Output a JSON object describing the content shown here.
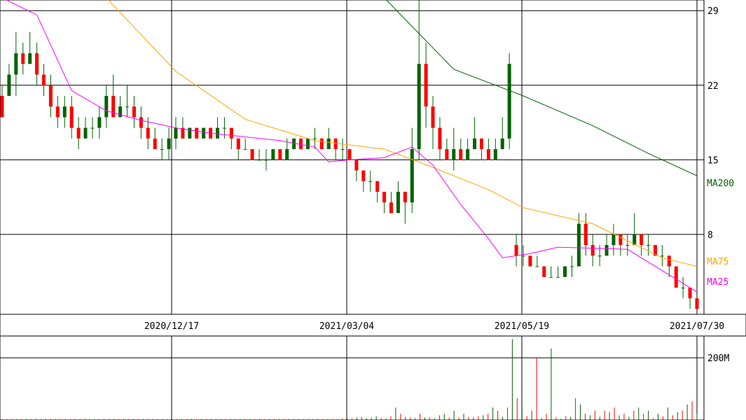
{
  "chart_data": [
    {
      "type": "candlestick",
      "x_tick_labels": [
        "2020/12/17",
        "2021/03/04",
        "2021/05/19",
        "2021/07/30"
      ],
      "y_tick_labels": [
        "29",
        "22",
        "15",
        "8"
      ],
      "ylim": [
        0.5,
        30
      ],
      "grid": true,
      "moving_averages": [
        {
          "name": "MA200",
          "color": "#006400",
          "values": [
            [
              0.55,
              30.2
            ],
            [
              0.65,
              23.5
            ],
            [
              0.75,
              21.0
            ],
            [
              0.85,
              18.2
            ],
            [
              0.93,
              15.6
            ],
            [
              1.0,
              13.5
            ]
          ]
        },
        {
          "name": "MA75",
          "color": "#ffa500",
          "values": [
            [
              0.15,
              30.2
            ],
            [
              0.25,
              23.3
            ],
            [
              0.35,
              18.8
            ],
            [
              0.45,
              16.8
            ],
            [
              0.55,
              16.0
            ],
            [
              0.6,
              14.8
            ],
            [
              0.7,
              12.2
            ],
            [
              0.75,
              10.5
            ],
            [
              0.85,
              9.0
            ],
            [
              0.95,
              5.8
            ],
            [
              1.0,
              5.0
            ]
          ]
        },
        {
          "name": "MA25",
          "color": "#ff00ff",
          "values": [
            [
              0.0,
              30.2
            ],
            [
              0.05,
              28.6
            ],
            [
              0.1,
              21.5
            ],
            [
              0.15,
              19.6
            ],
            [
              0.2,
              18.7
            ],
            [
              0.25,
              18.0
            ],
            [
              0.3,
              17.5
            ],
            [
              0.4,
              16.8
            ],
            [
              0.45,
              16.2
            ],
            [
              0.47,
              14.8
            ],
            [
              0.5,
              15.0
            ],
            [
              0.55,
              15.2
            ],
            [
              0.59,
              16.2
            ],
            [
              0.62,
              14.5
            ],
            [
              0.66,
              10.8
            ],
            [
              0.7,
              7.6
            ],
            [
              0.72,
              5.8
            ],
            [
              0.76,
              6.2
            ],
            [
              0.8,
              6.8
            ],
            [
              0.85,
              6.7
            ],
            [
              0.9,
              6.6
            ],
            [
              0.95,
              4.6
            ],
            [
              1.0,
              2.6
            ]
          ]
        }
      ],
      "candles": [
        {
          "x": 0.0,
          "o": 21,
          "c": 19,
          "h": 22,
          "l": 19
        },
        {
          "x": 0.01,
          "o": 21,
          "c": 23,
          "h": 24,
          "l": 21
        },
        {
          "x": 0.02,
          "o": 23,
          "c": 25,
          "h": 27,
          "l": 21
        },
        {
          "x": 0.03,
          "o": 25,
          "c": 24,
          "h": 26,
          "l": 23
        },
        {
          "x": 0.04,
          "o": 24,
          "c": 25,
          "h": 27,
          "l": 24
        },
        {
          "x": 0.05,
          "o": 25,
          "c": 23,
          "h": 26,
          "l": 22
        },
        {
          "x": 0.06,
          "o": 23,
          "c": 22,
          "h": 24,
          "l": 21
        },
        {
          "x": 0.07,
          "o": 22,
          "c": 20,
          "h": 23,
          "l": 19
        },
        {
          "x": 0.08,
          "o": 20,
          "c": 19,
          "h": 21,
          "l": 18
        },
        {
          "x": 0.09,
          "o": 19,
          "c": 20,
          "h": 21,
          "l": 18
        },
        {
          "x": 0.1,
          "o": 20,
          "c": 18,
          "h": 21,
          "l": 17
        },
        {
          "x": 0.11,
          "o": 18,
          "c": 17,
          "h": 19,
          "l": 16
        },
        {
          "x": 0.12,
          "o": 17,
          "c": 18,
          "h": 19,
          "l": 17
        },
        {
          "x": 0.13,
          "o": 18,
          "c": 18,
          "h": 19,
          "l": 17
        },
        {
          "x": 0.14,
          "o": 18,
          "c": 19,
          "h": 20,
          "l": 17
        },
        {
          "x": 0.15,
          "o": 19,
          "c": 21,
          "h": 22,
          "l": 18
        },
        {
          "x": 0.16,
          "o": 21,
          "c": 19,
          "h": 23,
          "l": 19
        },
        {
          "x": 0.17,
          "o": 19,
          "c": 20,
          "h": 21,
          "l": 19
        },
        {
          "x": 0.18,
          "o": 20,
          "c": 20,
          "h": 22,
          "l": 19
        },
        {
          "x": 0.19,
          "o": 20,
          "c": 19,
          "h": 21,
          "l": 18
        },
        {
          "x": 0.2,
          "o": 19,
          "c": 18,
          "h": 20,
          "l": 17
        },
        {
          "x": 0.21,
          "o": 18,
          "c": 17,
          "h": 19,
          "l": 16
        },
        {
          "x": 0.22,
          "o": 17,
          "c": 16,
          "h": 18,
          "l": 16
        },
        {
          "x": 0.23,
          "o": 16,
          "c": 16,
          "h": 17,
          "l": 15
        },
        {
          "x": 0.24,
          "o": 16,
          "c": 17,
          "h": 18,
          "l": 15
        },
        {
          "x": 0.25,
          "o": 17,
          "c": 18,
          "h": 19,
          "l": 16
        },
        {
          "x": 0.26,
          "o": 18,
          "c": 17,
          "h": 19,
          "l": 17
        },
        {
          "x": 0.27,
          "o": 17,
          "c": 18,
          "h": 18,
          "l": 17
        },
        {
          "x": 0.28,
          "o": 18,
          "c": 17,
          "h": 18,
          "l": 17
        },
        {
          "x": 0.29,
          "o": 17,
          "c": 18,
          "h": 18,
          "l": 17
        },
        {
          "x": 0.3,
          "o": 18,
          "c": 17,
          "h": 18,
          "l": 17
        },
        {
          "x": 0.31,
          "o": 17,
          "c": 18,
          "h": 19,
          "l": 17
        },
        {
          "x": 0.32,
          "o": 18,
          "c": 18,
          "h": 19,
          "l": 17
        },
        {
          "x": 0.33,
          "o": 18,
          "c": 17,
          "h": 18,
          "l": 16
        },
        {
          "x": 0.34,
          "o": 17,
          "c": 16,
          "h": 17,
          "l": 15
        },
        {
          "x": 0.35,
          "o": 16,
          "c": 16,
          "h": 17,
          "l": 16
        },
        {
          "x": 0.36,
          "o": 16,
          "c": 15,
          "h": 16,
          "l": 15
        },
        {
          "x": 0.37,
          "o": 15,
          "c": 15,
          "h": 16,
          "l": 15
        },
        {
          "x": 0.38,
          "o": 15,
          "c": 15,
          "h": 16,
          "l": 14
        },
        {
          "x": 0.39,
          "o": 15,
          "c": 16,
          "h": 16,
          "l": 15
        },
        {
          "x": 0.4,
          "o": 16,
          "c": 15,
          "h": 16,
          "l": 15
        },
        {
          "x": 0.41,
          "o": 15,
          "c": 16,
          "h": 17,
          "l": 15
        },
        {
          "x": 0.42,
          "o": 16,
          "c": 17,
          "h": 17,
          "l": 16
        },
        {
          "x": 0.43,
          "o": 17,
          "c": 16,
          "h": 17,
          "l": 16
        },
        {
          "x": 0.44,
          "o": 16,
          "c": 17,
          "h": 17,
          "l": 16
        },
        {
          "x": 0.45,
          "o": 17,
          "c": 17,
          "h": 18,
          "l": 16
        },
        {
          "x": 0.46,
          "o": 17,
          "c": 16,
          "h": 17,
          "l": 16
        },
        {
          "x": 0.47,
          "o": 16,
          "c": 17,
          "h": 18,
          "l": 16
        },
        {
          "x": 0.48,
          "o": 17,
          "c": 16,
          "h": 17,
          "l": 15
        },
        {
          "x": 0.49,
          "o": 16,
          "c": 16,
          "h": 17,
          "l": 15
        },
        {
          "x": 0.5,
          "o": 16,
          "c": 15,
          "h": 16,
          "l": 15
        },
        {
          "x": 0.51,
          "o": 15,
          "c": 14,
          "h": 15,
          "l": 13
        },
        {
          "x": 0.52,
          "o": 14,
          "c": 13,
          "h": 14,
          "l": 12
        },
        {
          "x": 0.53,
          "o": 13,
          "c": 13,
          "h": 14,
          "l": 12
        },
        {
          "x": 0.54,
          "o": 13,
          "c": 12,
          "h": 13,
          "l": 11
        },
        {
          "x": 0.55,
          "o": 12,
          "c": 11,
          "h": 12,
          "l": 10
        },
        {
          "x": 0.56,
          "o": 11,
          "c": 10,
          "h": 12,
          "l": 10
        },
        {
          "x": 0.57,
          "o": 10,
          "c": 12,
          "h": 13,
          "l": 10
        },
        {
          "x": 0.58,
          "o": 12,
          "c": 11,
          "h": 12,
          "l": 9
        },
        {
          "x": 0.59,
          "o": 11,
          "c": 16,
          "h": 18,
          "l": 10
        },
        {
          "x": 0.6,
          "o": 16,
          "c": 24,
          "h": 30,
          "l": 15
        },
        {
          "x": 0.61,
          "o": 24,
          "c": 20,
          "h": 26,
          "l": 18
        },
        {
          "x": 0.62,
          "o": 20,
          "c": 18,
          "h": 21,
          "l": 16
        },
        {
          "x": 0.63,
          "o": 18,
          "c": 16,
          "h": 19,
          "l": 15
        },
        {
          "x": 0.64,
          "o": 16,
          "c": 15,
          "h": 17,
          "l": 15
        },
        {
          "x": 0.65,
          "o": 15,
          "c": 16,
          "h": 18,
          "l": 14
        },
        {
          "x": 0.66,
          "o": 16,
          "c": 15,
          "h": 17,
          "l": 15
        },
        {
          "x": 0.67,
          "o": 15,
          "c": 16,
          "h": 17,
          "l": 15
        },
        {
          "x": 0.68,
          "o": 16,
          "c": 17,
          "h": 19,
          "l": 16
        },
        {
          "x": 0.69,
          "o": 17,
          "c": 16,
          "h": 17,
          "l": 15
        },
        {
          "x": 0.7,
          "o": 16,
          "c": 15,
          "h": 17,
          "l": 15
        },
        {
          "x": 0.71,
          "o": 15,
          "c": 16,
          "h": 17,
          "l": 15
        },
        {
          "x": 0.72,
          "o": 16,
          "c": 17,
          "h": 19,
          "l": 16
        },
        {
          "x": 0.73,
          "o": 17,
          "c": 24,
          "h": 25,
          "l": 16
        },
        {
          "x": 0.74,
          "o": 7,
          "c": 6,
          "h": 8,
          "l": 5
        },
        {
          "x": 0.75,
          "o": 6,
          "c": 6,
          "h": 7,
          "l": 5
        },
        {
          "x": 0.76,
          "o": 6,
          "c": 5,
          "h": 6,
          "l": 5
        },
        {
          "x": 0.77,
          "o": 5,
          "c": 5,
          "h": 6,
          "l": 5
        },
        {
          "x": 0.78,
          "o": 5,
          "c": 4,
          "h": 5,
          "l": 4
        },
        {
          "x": 0.79,
          "o": 4,
          "c": 4,
          "h": 5,
          "l": 4
        },
        {
          "x": 0.8,
          "o": 4,
          "c": 4,
          "h": 5,
          "l": 4
        },
        {
          "x": 0.81,
          "o": 4,
          "c": 5,
          "h": 5,
          "l": 4
        },
        {
          "x": 0.82,
          "o": 5,
          "c": 5,
          "h": 6,
          "l": 4
        },
        {
          "x": 0.83,
          "o": 5,
          "c": 9,
          "h": 10,
          "l": 5
        },
        {
          "x": 0.84,
          "o": 9,
          "c": 7,
          "h": 10,
          "l": 6
        },
        {
          "x": 0.85,
          "o": 7,
          "c": 6,
          "h": 8,
          "l": 5
        },
        {
          "x": 0.86,
          "o": 6,
          "c": 6,
          "h": 7,
          "l": 5
        },
        {
          "x": 0.87,
          "o": 6,
          "c": 7,
          "h": 8,
          "l": 6
        },
        {
          "x": 0.88,
          "o": 7,
          "c": 8,
          "h": 9,
          "l": 6
        },
        {
          "x": 0.89,
          "o": 8,
          "c": 7,
          "h": 8,
          "l": 6
        },
        {
          "x": 0.9,
          "o": 7,
          "c": 7,
          "h": 8,
          "l": 6
        },
        {
          "x": 0.91,
          "o": 7,
          "c": 8,
          "h": 10,
          "l": 7
        },
        {
          "x": 0.92,
          "o": 8,
          "c": 7,
          "h": 8,
          "l": 6
        },
        {
          "x": 0.93,
          "o": 7,
          "c": 7,
          "h": 8,
          "l": 6
        },
        {
          "x": 0.94,
          "o": 7,
          "c": 6,
          "h": 7,
          "l": 6
        },
        {
          "x": 0.95,
          "o": 6,
          "c": 6,
          "h": 7,
          "l": 5
        },
        {
          "x": 0.96,
          "o": 6,
          "c": 5,
          "h": 6,
          "l": 4
        },
        {
          "x": 0.97,
          "o": 5,
          "c": 3,
          "h": 5,
          "l": 3
        },
        {
          "x": 0.98,
          "o": 3,
          "c": 3,
          "h": 4,
          "l": 2
        },
        {
          "x": 0.99,
          "o": 3,
          "c": 2,
          "h": 3,
          "l": 1
        },
        {
          "x": 1.0,
          "o": 2,
          "c": 1,
          "h": 2,
          "l": 1
        }
      ]
    },
    {
      "type": "bar",
      "title": "",
      "y_tick_labels": [
        "200M"
      ],
      "ylim": [
        0,
        270
      ],
      "values": [
        3,
        3,
        3,
        3,
        3,
        3,
        3,
        3,
        3,
        3,
        3,
        3,
        3,
        3,
        3,
        3,
        3,
        3,
        3,
        3,
        3,
        3,
        3,
        3,
        3,
        3,
        3,
        3,
        3,
        3,
        3,
        3,
        3,
        3,
        3,
        3,
        3,
        3,
        3,
        3,
        3,
        3,
        3,
        3,
        3,
        3,
        3,
        3,
        3,
        3,
        3,
        3,
        3,
        3,
        3,
        3,
        3,
        3,
        3,
        3,
        3,
        3,
        3,
        3,
        3,
        3,
        3,
        3,
        3,
        3,
        5,
        6,
        5,
        8,
        10,
        6,
        8,
        12,
        6,
        5,
        12,
        40,
        20,
        10,
        8,
        6,
        20,
        8,
        8,
        6,
        15,
        20,
        8,
        30,
        8,
        20,
        10,
        8,
        12,
        15,
        20,
        40,
        30,
        10,
        40,
        260,
        70,
        40,
        12,
        30,
        200,
        6,
        20,
        230,
        8,
        4,
        12,
        10,
        70,
        50,
        20,
        15,
        30,
        10,
        30,
        25,
        40,
        15,
        20,
        10,
        30,
        40,
        20,
        30,
        6,
        20,
        12,
        40,
        15,
        25,
        30,
        50,
        60,
        20
      ]
    }
  ]
}
